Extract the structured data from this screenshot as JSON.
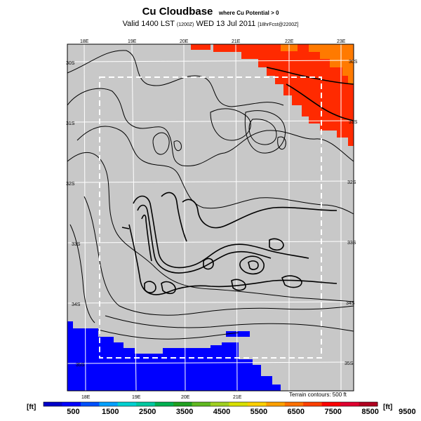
{
  "title": "Cu Cloudbase",
  "title_suffix": "where Cu Potential > 0",
  "valid_prefix": "Valid 1400 LST",
  "valid_code": "(1200Z)",
  "valid_date": "WED 13 Jul 2011",
  "valid_run": "[18hrFcst@2200Z]",
  "terrain_note": "Terrain contours: 500 ft",
  "lon_labels_top": [
    "18E",
    "19E",
    "20E",
    "21E",
    "22E",
    "23E"
  ],
  "lon_labels_bottom": [
    "18E",
    "19E",
    "20E",
    "21E"
  ],
  "lat_labels_left": [
    "30S",
    "31S",
    "32S",
    "33S",
    "34S",
    "35S"
  ],
  "lat_labels_right": [
    "30S",
    "31S",
    "32S",
    "33S",
    "34S",
    "35S"
  ],
  "colorbar": {
    "unit_left": "[ft]",
    "unit_right": "[ft]",
    "tick_labels": [
      "500",
      "1500",
      "2500",
      "3500",
      "4500",
      "5500",
      "6500",
      "7500",
      "8500",
      "9500"
    ],
    "colors": [
      "#0000c8",
      "#0000ff",
      "#0050ff",
      "#00a0ff",
      "#00d0d0",
      "#00c8a0",
      "#00b050",
      "#20a020",
      "#60b820",
      "#a0d020",
      "#d8e000",
      "#ffd000",
      "#ffa000",
      "#ff7000",
      "#ff4000",
      "#ff0000",
      "#e00030",
      "#b00020"
    ]
  },
  "colors": {
    "land": "#c8c8c8",
    "sea": "#0000ff",
    "cloudbase_high": "#ff2a00",
    "cloudbase_mid": "#ff7a00",
    "outline": "#ffffff"
  }
}
